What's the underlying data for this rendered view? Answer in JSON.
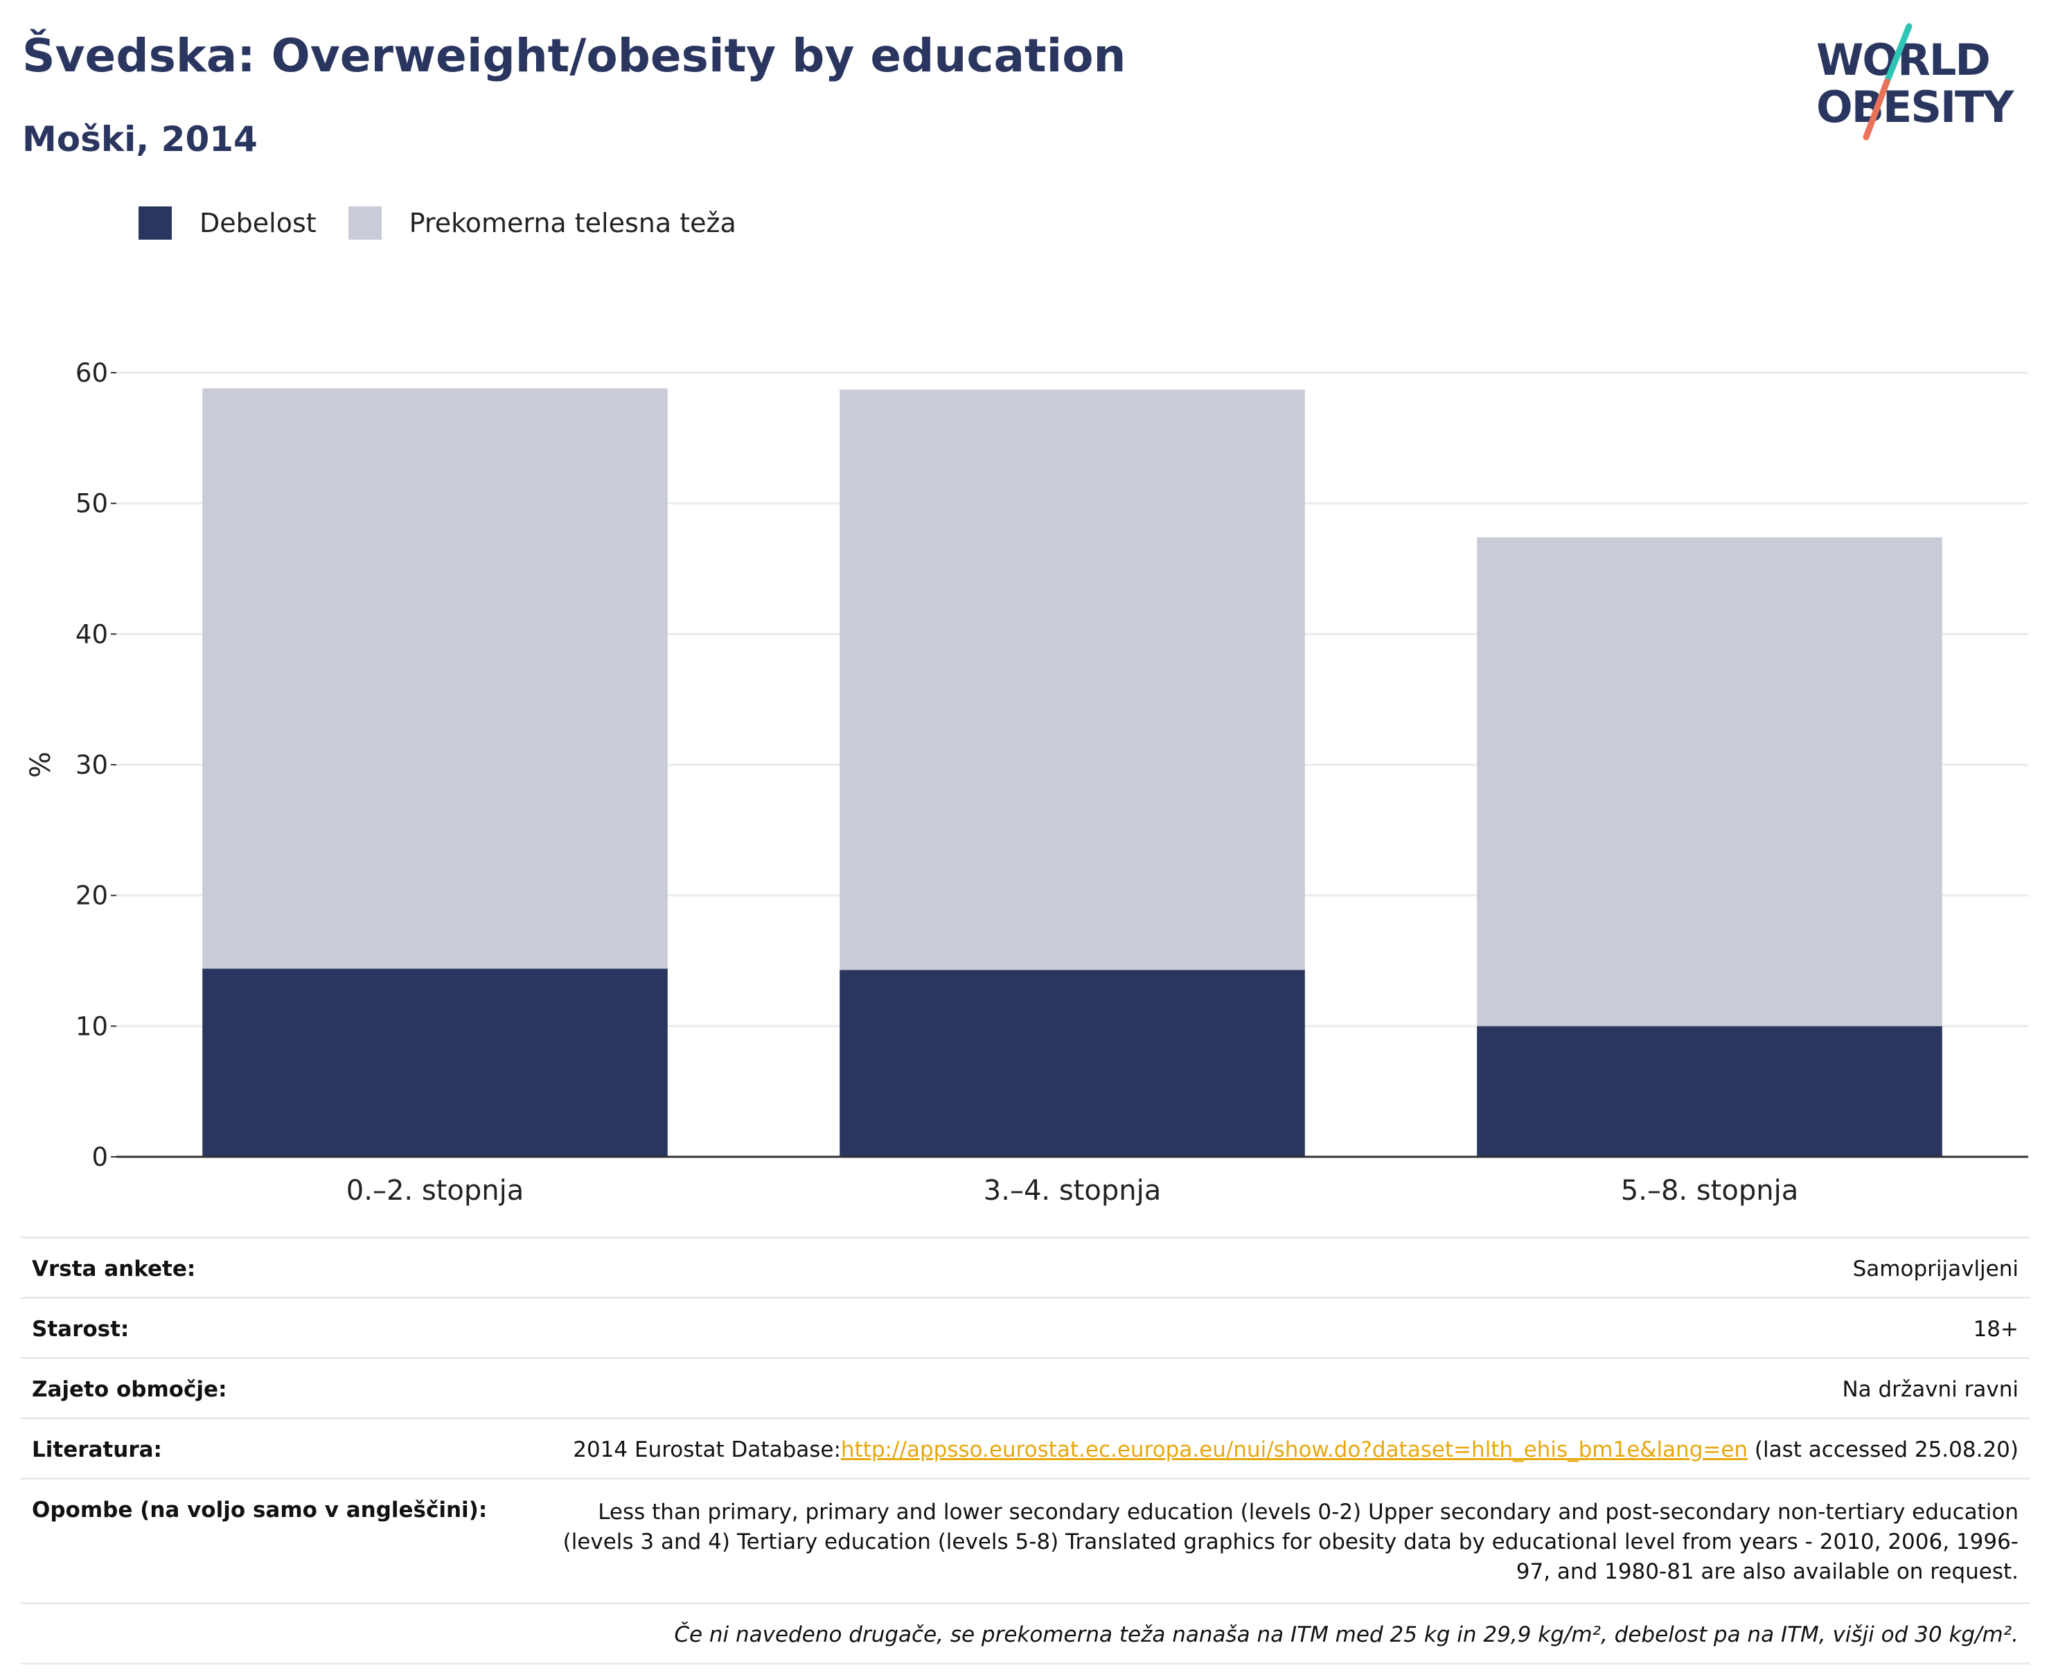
{
  "header": {
    "title": "Švedska: Overweight/obesity by education",
    "subtitle": "Moški, 2014"
  },
  "logo": {
    "line1": "WORLD",
    "line2": "OBESITY",
    "colors": {
      "text": "#2a365f",
      "teal": "#2ec4b6",
      "coral": "#e8735a"
    }
  },
  "colors": {
    "obesity": "#2a365f",
    "overweight": "#c9ccd7",
    "axis": "#333333",
    "grid": "#e9ebf0"
  },
  "chart_data": {
    "type": "bar",
    "stacked": true,
    "title": "Švedska: Overweight/obesity by education",
    "subtitle": "Moški, 2014",
    "ylabel": "%",
    "xlabel": "",
    "ylim": [
      0,
      60
    ],
    "yticks": [
      0,
      10,
      20,
      30,
      40,
      50,
      60
    ],
    "grid": true,
    "legend_position": "top-left",
    "categories": [
      "0.–2. stopnja",
      "3.–4. stopnja",
      "5.–8. stopnja"
    ],
    "series": [
      {
        "name": "Debelost",
        "values": [
          14.4,
          14.3,
          10.0
        ],
        "color": "#2a365f"
      },
      {
        "name": "Prekomerna telesna teža",
        "values": [
          44.4,
          44.4,
          37.4
        ],
        "color": "#c9ccd7"
      }
    ]
  },
  "meta": {
    "survey_label": "Vrsta ankete:",
    "survey_value": "Samoprijavljeni",
    "age_label": "Starost:",
    "age_value": "18+",
    "area_label": "Zajeto območje:",
    "area_value": "Na državni ravni",
    "lit_label": "Literatura:",
    "lit_prefix": "2014 Eurostat Database:",
    "lit_link": "http://appsso.eurostat.ec.europa.eu/nui/show.do?dataset=hlth_ehis_bm1e&lang=en",
    "lit_suffix": " (last accessed 25.08.20)",
    "notes_label": "Opombe (na voljo samo v angleščini):",
    "notes_value": "Less than primary, primary and lower secondary education (levels 0-2) Upper secondary and post-secondary non-tertiary education (levels 3 and 4) Tertiary education (levels 5-8) Translated graphics for obesity data by educational level from years - 2010, 2006, 1996-97, and 1980-81 are also available on request.",
    "footnote": "Če ni navedeno drugače, se prekomerna teža nanaša na ITM med 25 kg in 29,9 kg/m², debelost pa na ITM, višji od 30 kg/m²."
  }
}
